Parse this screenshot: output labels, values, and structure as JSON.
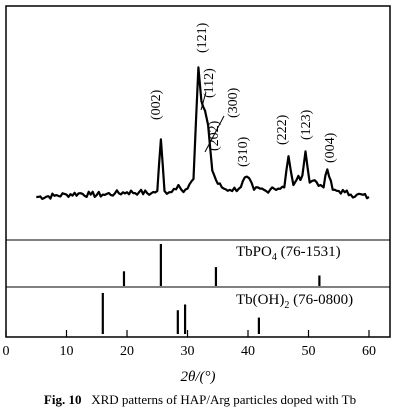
{
  "chart_data": {
    "type": "line",
    "xlabel": "2θ/(°)",
    "xlim": [
      0,
      63
    ],
    "x_ticks": [
      0,
      10,
      20,
      30,
      40,
      50,
      60
    ],
    "xrd_pattern": {
      "x": [
        5,
        8,
        10,
        12,
        14,
        16,
        18,
        20,
        22,
        24,
        25,
        25.6,
        26.2,
        27,
        28.5,
        29,
        30,
        31,
        31.8,
        32.3,
        32.9,
        33.4,
        34.1,
        35,
        36,
        37,
        38.5,
        39.8,
        41,
        42,
        43,
        44,
        45,
        46,
        46.7,
        47.5,
        48,
        49,
        49.5,
        50.2,
        51,
        52,
        52.5,
        53.1,
        54,
        55,
        56,
        57,
        58,
        60
      ],
      "y": [
        10,
        11,
        12,
        13,
        12,
        12,
        13,
        14,
        14,
        13,
        15,
        58,
        15,
        14,
        20,
        16,
        17,
        25,
        118,
        90,
        82,
        70,
        32,
        21,
        17,
        16,
        17,
        27,
        16,
        17,
        15,
        18,
        17,
        18,
        44,
        20,
        24,
        28,
        48,
        22,
        24,
        20,
        18,
        33,
        16,
        15,
        14,
        12,
        12,
        10
      ]
    },
    "peak_labels": [
      {
        "x": 25.7,
        "label": "(002)"
      },
      {
        "x": 31.8,
        "label": "(121)"
      },
      {
        "x": 32.2,
        "label": "(112)"
      },
      {
        "x": 32.9,
        "label": "(300)"
      },
      {
        "x": 34.1,
        "label": "(202)"
      },
      {
        "x": 39.8,
        "label": "(310)"
      },
      {
        "x": 46.7,
        "label": "(222)"
      },
      {
        "x": 49.5,
        "label": "(123)"
      },
      {
        "x": 53.1,
        "label": "(004)"
      }
    ],
    "references": [
      {
        "name": "TbPO",
        "sub": "4",
        "code": "(76-1531)",
        "x": [
          19.5,
          25.6,
          34.7,
          51.8
        ],
        "heights": [
          0.35,
          1.0,
          0.45,
          0.25
        ]
      },
      {
        "name": "Tb(OH)",
        "sub": "2",
        "code": "(76-0800)",
        "x": [
          16.0,
          28.4,
          29.6,
          41.8
        ],
        "heights": [
          1.0,
          0.58,
          0.72,
          0.4
        ]
      }
    ]
  },
  "caption": {
    "label": "Fig. 10",
    "text": "XRD patterns of HAP/Arg particles doped with Tb"
  }
}
